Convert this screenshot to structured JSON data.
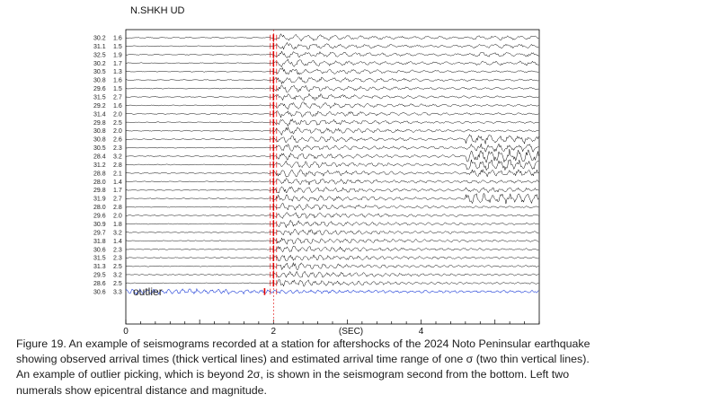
{
  "station_label": "N.SHKH UD",
  "caption": [
    "Figure 19. An example of seismograms recorded at a station for aftershocks of the 2024 Noto Peninsular earthquake",
    "showing observed arrival times (thick vertical lines) and estimated arrival time range of  one σ (two thin vertical lines).",
    "An example of outlier picking, which is beyond 2σ, is shown in the seismogram second from the bottom. Left two",
    "numerals show epicentral distance and magnitude."
  ],
  "chart_data": {
    "type": "line",
    "title": "N.SHKH UD",
    "xlabel": "(SEC)",
    "ylabel": "",
    "xlim": [
      0,
      5.6
    ],
    "xticks": [
      "0",
      "2",
      "4"
    ],
    "arrival_time_sec": 2.0,
    "colors": {
      "trace": "#000000",
      "outlier_trace": "#1f3fd8",
      "arrival_mark": "#e00000"
    },
    "annotation": "outlier",
    "outlier_index": 30,
    "traces": [
      {
        "distance": "30.2",
        "magnitude": "1.6"
      },
      {
        "distance": "31.1",
        "magnitude": "1.5"
      },
      {
        "distance": "32.5",
        "magnitude": "1.9"
      },
      {
        "distance": "30.2",
        "magnitude": "1.7"
      },
      {
        "distance": "30.5",
        "magnitude": "1.3"
      },
      {
        "distance": "30.8",
        "magnitude": "1.6"
      },
      {
        "distance": "29.6",
        "magnitude": "1.5"
      },
      {
        "distance": "31.5",
        "magnitude": "2.7"
      },
      {
        "distance": "29.2",
        "magnitude": "1.6"
      },
      {
        "distance": "31.4",
        "magnitude": "2.0"
      },
      {
        "distance": "29.8",
        "magnitude": "2.5"
      },
      {
        "distance": "30.8",
        "magnitude": "2.0"
      },
      {
        "distance": "30.8",
        "magnitude": "2.6"
      },
      {
        "distance": "30.5",
        "magnitude": "2.3"
      },
      {
        "distance": "28.4",
        "magnitude": "3.2"
      },
      {
        "distance": "31.2",
        "magnitude": "2.8"
      },
      {
        "distance": "28.8",
        "magnitude": "2.1"
      },
      {
        "distance": "28.0",
        "magnitude": "1.4"
      },
      {
        "distance": "29.8",
        "magnitude": "1.7"
      },
      {
        "distance": "31.9",
        "magnitude": "2.7"
      },
      {
        "distance": "28.0",
        "magnitude": "2.8"
      },
      {
        "distance": "29.6",
        "magnitude": "2.0"
      },
      {
        "distance": "30.9",
        "magnitude": "1.8"
      },
      {
        "distance": "29.7",
        "magnitude": "3.2"
      },
      {
        "distance": "31.8",
        "magnitude": "1.4"
      },
      {
        "distance": "30.6",
        "magnitude": "2.3"
      },
      {
        "distance": "31.5",
        "magnitude": "2.3"
      },
      {
        "distance": "31.3",
        "magnitude": "2.5"
      },
      {
        "distance": "29.5",
        "magnitude": "3.2"
      },
      {
        "distance": "28.6",
        "magnitude": "2.5"
      },
      {
        "distance": "30.6",
        "magnitude": "3.3"
      }
    ]
  }
}
